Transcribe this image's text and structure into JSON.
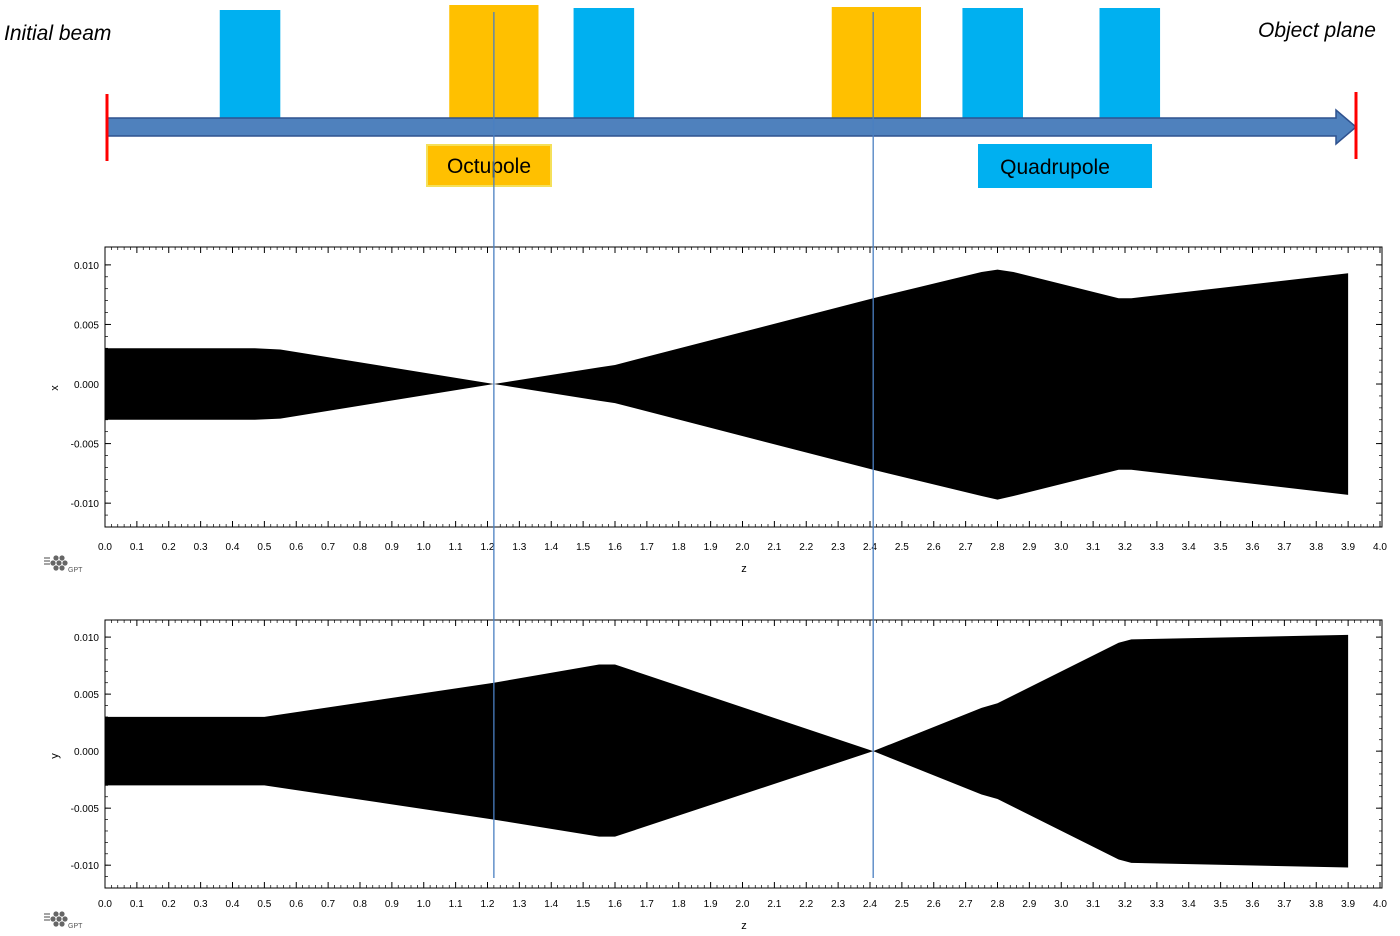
{
  "diagram": {
    "left_label": "Initial beam",
    "right_label": "Object plane",
    "colors": {
      "octupole": "#ffc000",
      "quadrupole": "#00b0f0",
      "beamline": "#4f81bd",
      "endpoint": "#ff0000",
      "marker_line": "#4a7fc1"
    },
    "legend": {
      "octupole_label": "Octupole",
      "quadrupole_label": "Quadrupole"
    },
    "elements": [
      {
        "type": "quadrupole",
        "z_start": 0.36,
        "z_end": 0.55
      },
      {
        "type": "octupole",
        "z_start": 1.08,
        "z_end": 1.36
      },
      {
        "type": "quadrupole",
        "z_start": 1.47,
        "z_end": 1.66
      },
      {
        "type": "octupole",
        "z_start": 2.28,
        "z_end": 2.56
      },
      {
        "type": "quadrupole",
        "z_start": 2.69,
        "z_end": 2.88
      },
      {
        "type": "quadrupole",
        "z_start": 3.12,
        "z_end": 3.31
      }
    ],
    "marker_lines_z": [
      1.22,
      2.41
    ]
  },
  "chart_data": [
    {
      "type": "area",
      "xlabel": "z",
      "ylabel": "x",
      "xlim": [
        0.0,
        4.0
      ],
      "ylim": [
        -0.012,
        0.0115
      ],
      "x_ticks": [
        "0.0",
        "0.1",
        "0.2",
        "0.3",
        "0.4",
        "0.5",
        "0.6",
        "0.7",
        "0.8",
        "0.9",
        "1.0",
        "1.1",
        "1.2",
        "1.3",
        "1.4",
        "1.5",
        "1.6",
        "1.7",
        "1.8",
        "1.9",
        "2.0",
        "2.1",
        "2.2",
        "2.3",
        "2.4",
        "2.5",
        "2.6",
        "2.7",
        "2.8",
        "2.9",
        "3.0",
        "3.1",
        "3.2",
        "3.3",
        "3.4",
        "3.5",
        "3.6",
        "3.7",
        "3.8",
        "3.9",
        "4.0"
      ],
      "y_ticks": [
        "0.010",
        "0.005",
        "0.000",
        "-0.005",
        "-0.010"
      ],
      "y_tick_values": [
        0.01,
        0.005,
        0.0,
        -0.005,
        -0.01
      ],
      "envelope": {
        "z": [
          0.0,
          0.47,
          0.55,
          1.22,
          1.55,
          1.6,
          2.41,
          2.75,
          2.8,
          2.85,
          3.18,
          3.22,
          3.9
        ],
        "upper": [
          0.003,
          0.003,
          0.0029,
          0.0,
          0.0014,
          0.0016,
          0.0072,
          0.0094,
          0.0096,
          0.0094,
          0.0072,
          0.0072,
          0.0093
        ],
        "lower": [
          -0.003,
          -0.003,
          -0.0029,
          0.0,
          -0.0014,
          -0.0016,
          -0.0072,
          -0.0094,
          -0.0097,
          -0.0094,
          -0.0072,
          -0.0072,
          -0.0093
        ]
      }
    },
    {
      "type": "area",
      "xlabel": "z",
      "ylabel": "y",
      "xlim": [
        0.0,
        4.0
      ],
      "ylim": [
        -0.012,
        0.0115
      ],
      "x_ticks": [
        "0.0",
        "0.1",
        "0.2",
        "0.3",
        "0.4",
        "0.5",
        "0.6",
        "0.7",
        "0.8",
        "0.9",
        "1.0",
        "1.1",
        "1.2",
        "1.3",
        "1.4",
        "1.5",
        "1.6",
        "1.7",
        "1.8",
        "1.9",
        "2.0",
        "2.1",
        "2.2",
        "2.3",
        "2.4",
        "2.5",
        "2.6",
        "2.7",
        "2.8",
        "2.9",
        "3.0",
        "3.1",
        "3.2",
        "3.3",
        "3.4",
        "3.5",
        "3.6",
        "3.7",
        "3.8",
        "3.9",
        "4.0"
      ],
      "y_ticks": [
        "0.010",
        "0.005",
        "0.000",
        "-0.005",
        "-0.010"
      ],
      "y_tick_values": [
        0.01,
        0.005,
        0.0,
        -0.005,
        -0.01
      ],
      "envelope": {
        "z": [
          0.0,
          0.5,
          1.22,
          1.55,
          1.6,
          2.41,
          2.75,
          2.8,
          3.18,
          3.22,
          3.9
        ],
        "upper": [
          0.003,
          0.003,
          0.006,
          0.0076,
          0.0076,
          0.0,
          0.0038,
          0.0042,
          0.0095,
          0.0098,
          0.0102
        ],
        "lower": [
          -0.003,
          -0.003,
          -0.006,
          -0.0075,
          -0.0075,
          0.0,
          -0.0038,
          -0.0042,
          -0.0095,
          -0.0098,
          -0.0102
        ]
      }
    }
  ]
}
